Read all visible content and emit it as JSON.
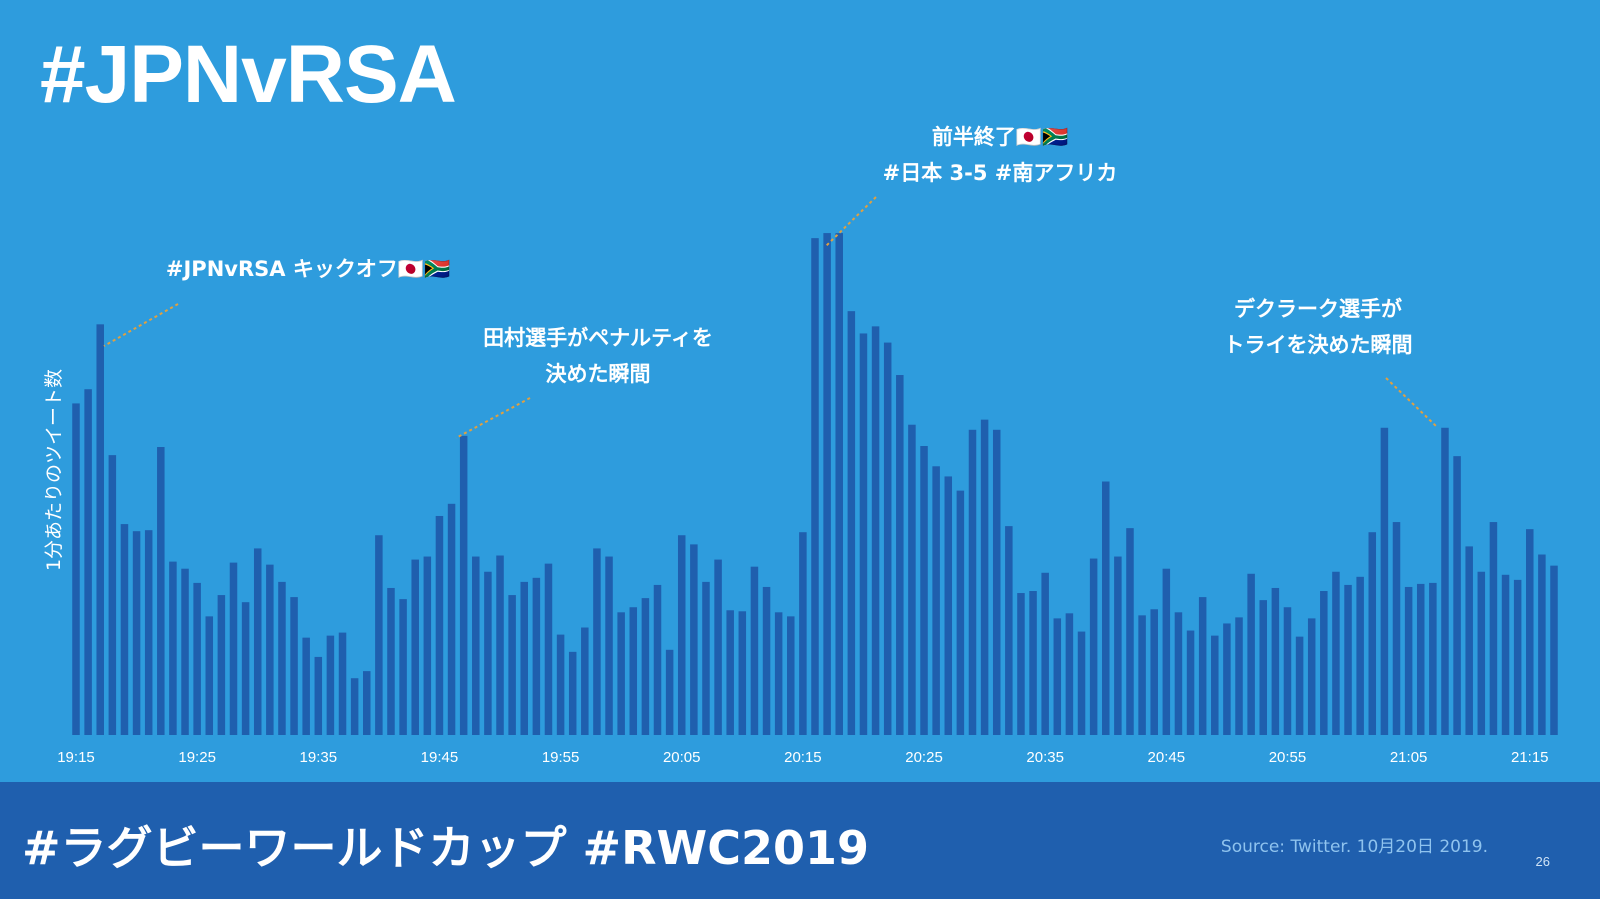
{
  "slide": {
    "title": "#JPNvRSA",
    "footer_hashtags": "#ラグビーワールドカップ #RWC2019",
    "source": "Source: Twitter. 10月20日 2019.",
    "page_number": "26"
  },
  "colors": {
    "background": "#2e9cdd",
    "bar": "#1f5fae",
    "footer": "#1f5fae",
    "text": "#ffffff",
    "annotation_line": "#e0a040"
  },
  "chart_data": {
    "type": "bar",
    "title": "",
    "ylabel": "1分あたりのツイート数",
    "xlabel": "",
    "x_start": "19:15",
    "x_end": "21:15",
    "interval_minutes": 1,
    "xticks": [
      "19:15",
      "19:25",
      "19:35",
      "19:45",
      "19:55",
      "20:05",
      "20:15",
      "20:25",
      "20:35",
      "20:45",
      "20:55",
      "21:05",
      "21:15"
    ],
    "ylim": [
      0,
      500
    ],
    "grid": false,
    "legend": "none",
    "values": [
      327,
      341,
      405,
      276,
      208,
      201,
      202,
      284,
      171,
      164,
      150,
      117,
      138,
      170,
      131,
      184,
      168,
      151,
      136,
      96,
      77,
      98,
      101,
      56,
      63,
      197,
      145,
      134,
      173,
      176,
      216,
      228,
      295,
      176,
      161,
      177,
      138,
      151,
      155,
      169,
      99,
      82,
      106,
      184,
      176,
      121,
      126,
      135,
      148,
      84,
      197,
      188,
      151,
      173,
      123,
      122,
      166,
      146,
      121,
      117,
      200,
      490,
      495,
      495,
      418,
      396,
      403,
      387,
      355,
      306,
      285,
      265,
      255,
      241,
      301,
      311,
      301,
      206,
      140,
      142,
      160,
      115,
      120,
      102,
      174,
      250,
      176,
      204,
      118,
      124,
      164,
      121,
      103,
      136,
      98,
      110,
      116,
      159,
      133,
      145,
      126,
      97,
      115,
      142,
      161,
      148,
      156,
      200,
      303,
      210,
      146,
      149,
      150,
      303,
      275,
      186,
      161,
      210,
      158,
      153,
      203,
      178,
      167
    ],
    "annotations": [
      {
        "text": "#JPNvRSA キックオフ🇯🇵🇿🇦",
        "index": 2
      },
      {
        "text": "田村選手がペナルティを\n決めた瞬間",
        "index": 31
      },
      {
        "text": "前半終了🇯🇵🇿🇦\n#日本 3-5 #南アフリカ",
        "index": 62
      },
      {
        "text": "デクラーク選手が\nトライを決めた瞬間",
        "index": 110
      }
    ]
  }
}
